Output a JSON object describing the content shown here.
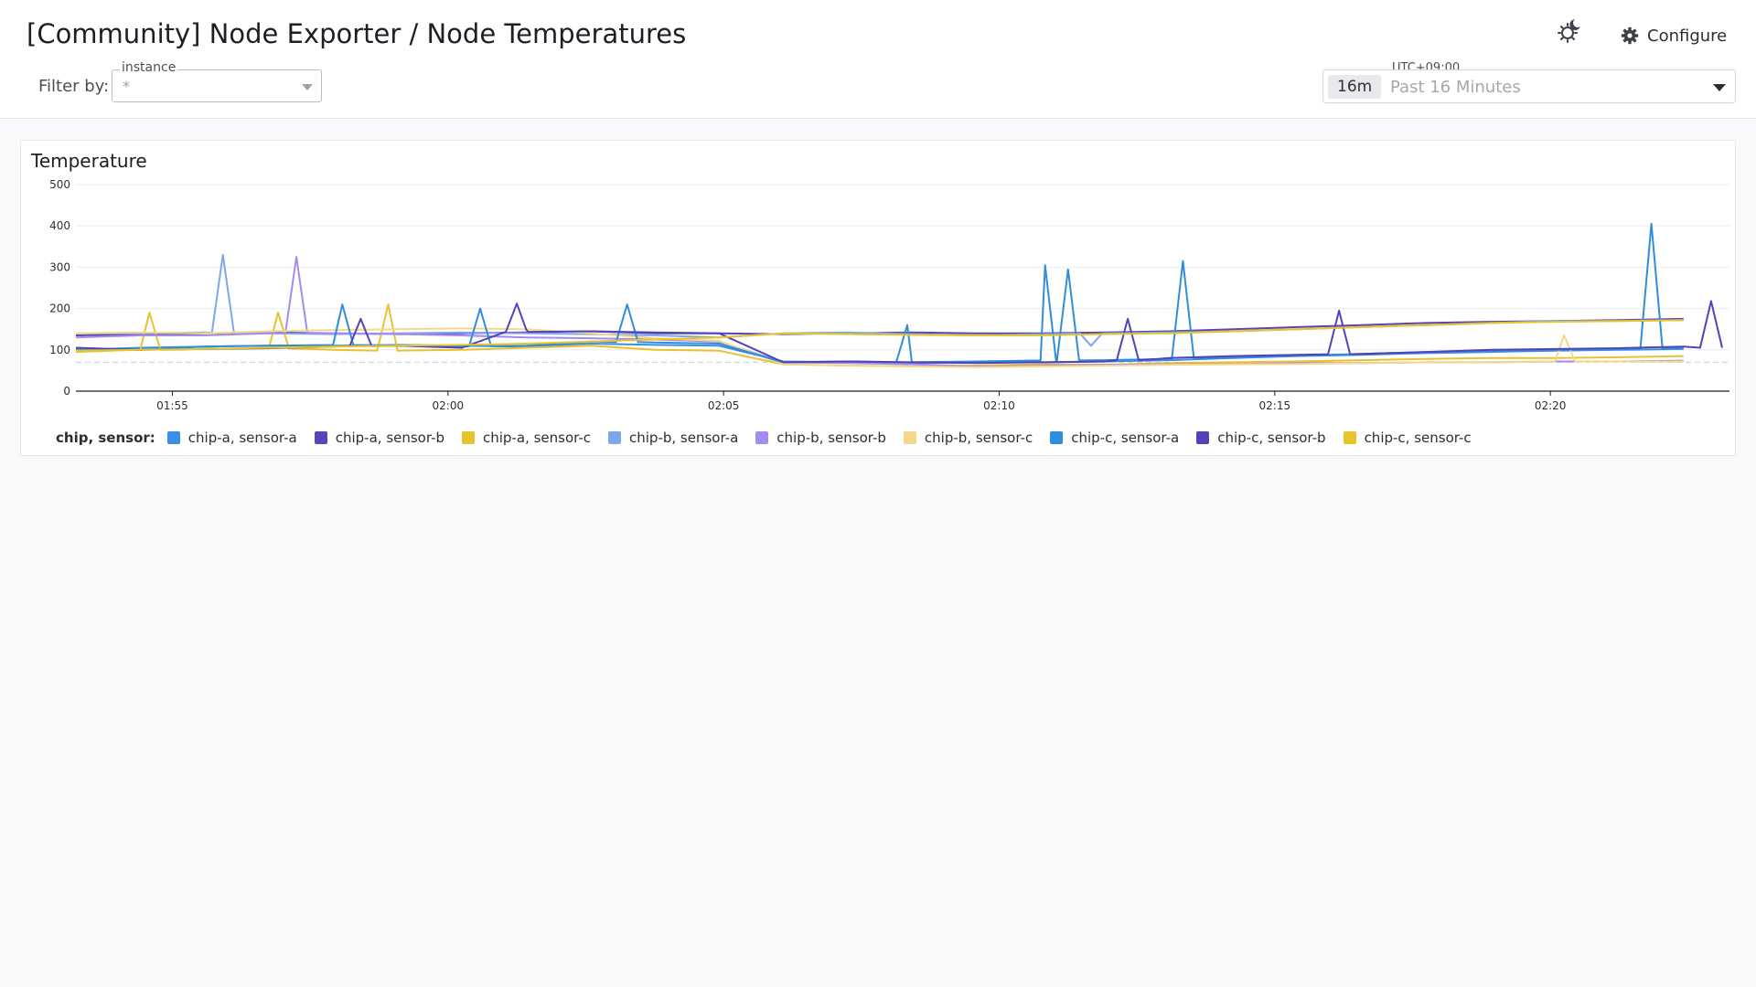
{
  "header": {
    "title": "[Community] Node Exporter / Node Temperatures",
    "configure_label": "Configure",
    "filter_label": "Filter by:",
    "instance": {
      "label": "instance",
      "value": "*"
    },
    "time": {
      "timezone": "UTC+09:00",
      "chip": "16m",
      "range_text": "Past 16 Minutes"
    }
  },
  "panel": {
    "title": "Temperature",
    "legend_title": "chip, sensor:"
  },
  "chart_data": {
    "type": "line",
    "title": "Temperature",
    "xlabel": "",
    "ylabel": "",
    "x_ticks": [
      "01:55",
      "02:00",
      "02:05",
      "02:10",
      "02:15",
      "02:20"
    ],
    "y_ticks": [
      0,
      100,
      200,
      300,
      400,
      500
    ],
    "x_domain": [
      "01:53:15",
      "02:23:15"
    ],
    "ylim": [
      0,
      500
    ],
    "grid": true,
    "legend_placement": "bottom-left",
    "threshold": 70,
    "x": [
      "01:53:15",
      "01:54:25",
      "01:55:35",
      "01:56:45",
      "01:57:55",
      "01:59:05",
      "02:00:15",
      "02:01:25",
      "02:02:35",
      "02:03:45",
      "02:04:55",
      "02:06:05",
      "02:07:15",
      "02:08:25",
      "02:09:35",
      "02:10:45",
      "02:11:55",
      "02:13:05",
      "02:14:15",
      "02:15:25",
      "02:16:35",
      "02:17:45",
      "02:18:55",
      "02:20:05",
      "02:21:15",
      "02:22:25"
    ],
    "series": [
      {
        "name": "chip-a, sensor-a",
        "color": "#3a8ee6",
        "values": [
          100,
          105,
          108,
          110,
          110,
          112,
          110,
          108,
          115,
          112,
          110,
          72,
          70,
          68,
          70,
          70,
          72,
          75,
          80,
          85,
          88,
          92,
          95,
          98,
          100,
          102
        ]
      },
      {
        "name": "chip-a, sensor-b",
        "color": "#5b44b8",
        "values": [
          135,
          138,
          140,
          142,
          140,
          138,
          140,
          142,
          145,
          140,
          140,
          138,
          140,
          142,
          140,
          140,
          142,
          145,
          150,
          155,
          160,
          165,
          168,
          170,
          172,
          175
        ]
      },
      {
        "name": "chip-a, sensor-c",
        "color": "#e8c12f",
        "values": [
          95,
          100,
          102,
          104,
          100,
          98,
          100,
          105,
          110,
          100,
          98,
          65,
          62,
          60,
          62,
          65,
          64,
          68,
          70,
          72,
          75,
          78,
          80,
          80,
          82,
          85
        ]
      },
      {
        "name": "chip-b, sensor-a",
        "color": "#7ea6ef",
        "values": [
          140,
          140,
          142,
          140,
          138,
          140,
          142,
          140,
          138,
          135,
          130,
          140,
          142,
          138,
          135,
          138,
          140,
          142,
          145,
          150,
          155,
          160,
          165,
          170,
          170,
          172
        ]
      },
      {
        "name": "chip-b, sensor-b",
        "color": "#a68bef",
        "values": [
          130,
          135,
          135,
          140,
          140,
          138,
          135,
          130,
          128,
          125,
          120,
          70,
          68,
          65,
          60,
          62,
          64,
          65,
          66,
          68,
          68,
          70,
          70,
          72,
          72,
          74
        ]
      },
      {
        "name": "chip-b, sensor-c",
        "color": "#f5d78a",
        "values": [
          140,
          142,
          140,
          145,
          148,
          150,
          152,
          150,
          140,
          128,
          122,
          65,
          62,
          60,
          58,
          60,
          62,
          64,
          65,
          66,
          68,
          70,
          70,
          72,
          72,
          72
        ]
      },
      {
        "name": "chip-c, sensor-a",
        "color": "#2f8ddb",
        "values": [
          102,
          100,
          108,
          110,
          112,
          110,
          108,
          110,
          120,
          118,
          115,
          70,
          72,
          70,
          72,
          74,
          75,
          78,
          82,
          86,
          90,
          95,
          98,
          100,
          103,
          105
        ]
      },
      {
        "name": "chip-c, sensor-b",
        "color": "#5343b8",
        "values": [
          105,
          100,
          102,
          104,
          108,
          110,
          105,
          150,
          145,
          142,
          140,
          70,
          72,
          70,
          68,
          70,
          72,
          80,
          85,
          88,
          90,
          95,
          100,
          102,
          104,
          108
        ]
      },
      {
        "name": "chip-c, sensor-c",
        "color": "#e6c52a",
        "values": [
          98,
          100,
          102,
          105,
          108,
          110,
          112,
          115,
          120,
          125,
          130,
          140,
          138,
          136,
          135,
          135,
          138,
          140,
          145,
          150,
          155,
          160,
          165,
          168,
          170,
          172
        ]
      }
    ],
    "spikes": [
      {
        "series": "chip-b, sensor-a",
        "x": "01:55:55",
        "value": 330
      },
      {
        "series": "chip-b, sensor-b",
        "x": "01:57:15",
        "value": 325
      },
      {
        "series": "chip-a, sensor-c",
        "x": "01:54:35",
        "value": 190
      },
      {
        "series": "chip-a, sensor-c",
        "x": "01:56:55",
        "value": 190
      },
      {
        "series": "chip-a, sensor-c",
        "x": "01:58:55",
        "value": 210
      },
      {
        "series": "chip-c, sensor-a",
        "x": "01:58:05",
        "value": 210
      },
      {
        "series": "chip-c, sensor-a",
        "x": "02:00:35",
        "value": 200
      },
      {
        "series": "chip-c, sensor-a",
        "x": "02:03:15",
        "value": 210
      },
      {
        "series": "chip-c, sensor-b",
        "x": "01:58:25",
        "value": 175
      },
      {
        "series": "chip-c, sensor-b",
        "x": "02:01:15",
        "value": 212
      },
      {
        "series": "chip-c, sensor-a",
        "x": "02:08:20",
        "value": 160
      },
      {
        "series": "chip-c, sensor-a",
        "x": "02:10:50",
        "value": 305
      },
      {
        "series": "chip-c, sensor-a",
        "x": "02:11:15",
        "value": 295
      },
      {
        "series": "chip-c, sensor-a",
        "x": "02:13:20",
        "value": 315
      },
      {
        "series": "chip-c, sensor-b",
        "x": "02:12:20",
        "value": 175
      },
      {
        "series": "chip-c, sensor-b",
        "x": "02:16:10",
        "value": 195
      },
      {
        "series": "chip-b, sensor-a",
        "x": "02:11:40",
        "value": 110
      },
      {
        "series": "chip-b, sensor-c",
        "x": "02:20:15",
        "value": 135
      },
      {
        "series": "chip-c, sensor-a",
        "x": "02:21:50",
        "value": 405
      },
      {
        "series": "chip-c, sensor-b",
        "x": "02:22:55",
        "value": 218
      }
    ]
  }
}
